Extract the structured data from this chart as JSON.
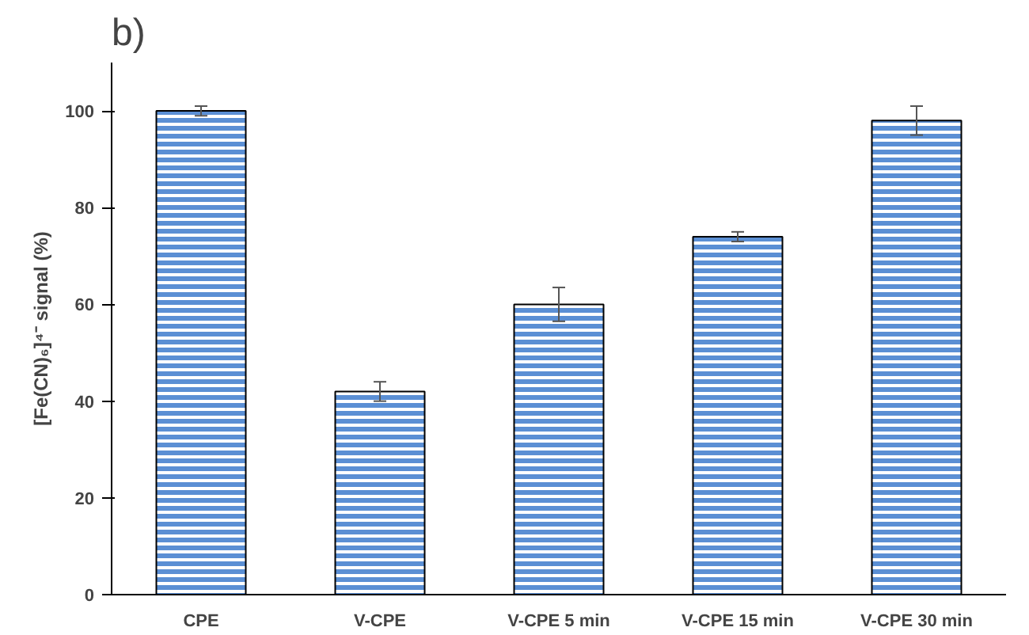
{
  "chart_data": {
    "type": "bar",
    "title": "b)",
    "ylabel": "[Fe(CN)₆]⁴⁻ signal (%)",
    "categories": [
      "CPE",
      "V-CPE",
      "V-CPE 5 min",
      "V-CPE 15 min",
      "V-CPE 30 min"
    ],
    "values": [
      100,
      42,
      60,
      74,
      98
    ],
    "errors": [
      1,
      2,
      3.5,
      1,
      3
    ],
    "color": "#5b8fd4",
    "ylim": [
      0,
      110
    ],
    "yticks": [
      0,
      20,
      40,
      60,
      80,
      100
    ],
    "grid": false
  }
}
